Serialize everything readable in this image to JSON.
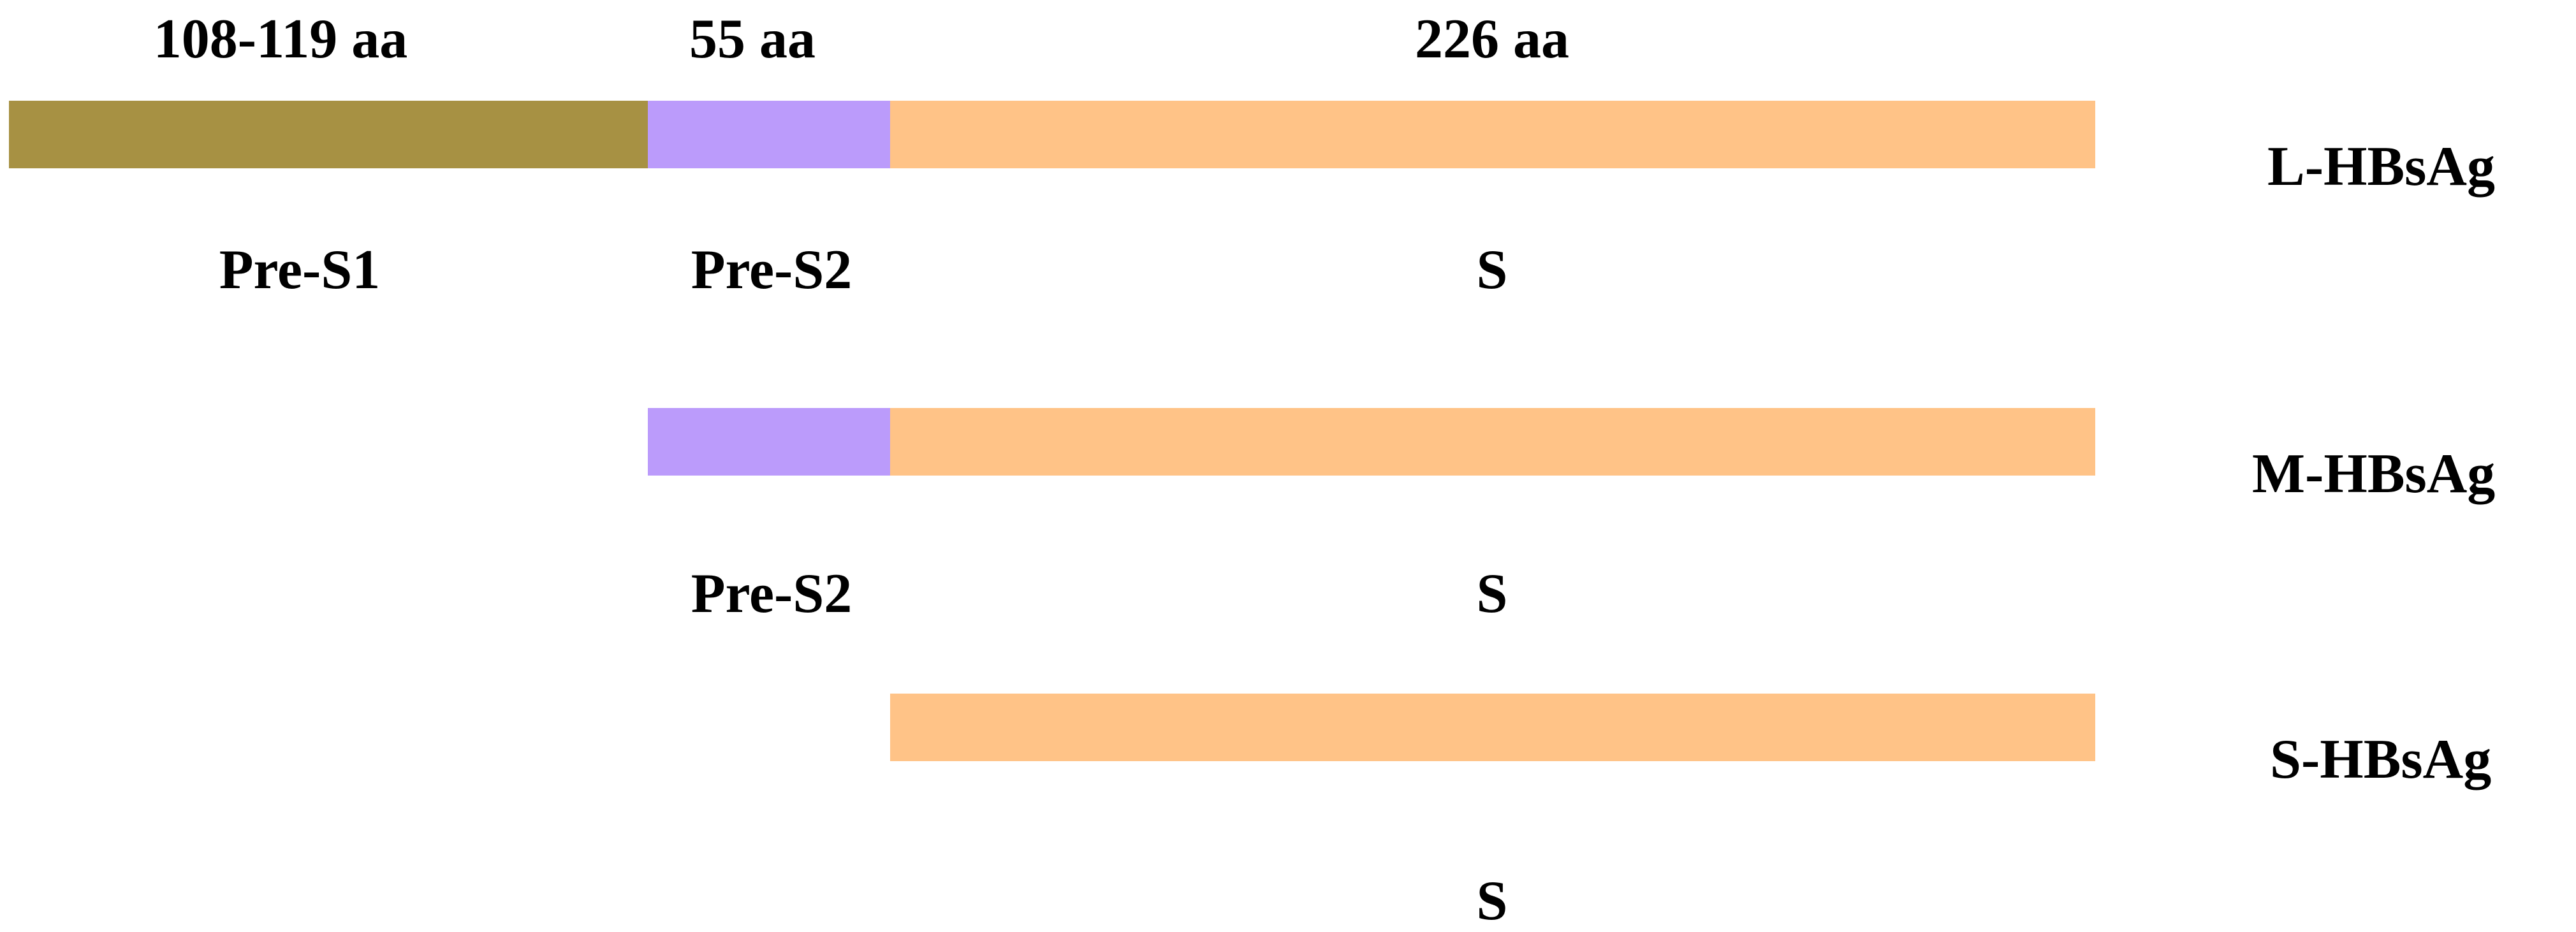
{
  "header": {
    "pre_s1_length": "108-119 aa",
    "pre_s2_length": "55 aa",
    "s_length": "226 aa"
  },
  "colors": {
    "pre_s1": "#A79143",
    "pre_s2": "#BB9BFB",
    "s": "#FFC387"
  },
  "proteins": [
    {
      "name": "L-HBsAg",
      "segments": [
        "Pre-S1",
        "Pre-S2",
        "S"
      ]
    },
    {
      "name": "M-HBsAg",
      "segments": [
        "Pre-S2",
        "S"
      ]
    },
    {
      "name": "S-HBsAg",
      "segments": [
        "S"
      ]
    }
  ]
}
